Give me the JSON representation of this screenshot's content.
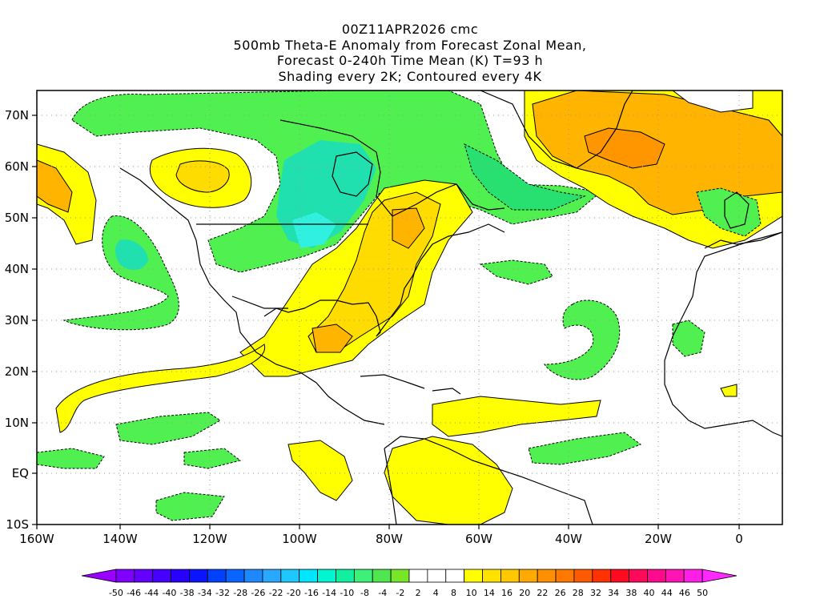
{
  "title": {
    "line1": "00Z11APR2026 cmc",
    "line2": "500mb Theta-E Anomaly from Forecast Zonal Mean,",
    "line3": "Forecast 0-240h Time Mean (K) T=93 h",
    "line4": "Shading every 2K; Contoured every 4K"
  },
  "axes": {
    "lat_labels": [
      "70N",
      "60N",
      "50N",
      "40N",
      "30N",
      "20N",
      "10N",
      "EQ",
      "10S"
    ],
    "lon_labels": [
      "160W",
      "140W",
      "120W",
      "100W",
      "80W",
      "60W",
      "40W",
      "20W",
      "0"
    ]
  },
  "colorbar": {
    "labels": [
      "-50",
      "-46",
      "-44",
      "-40",
      "-38",
      "-34",
      "-32",
      "-28",
      "-26",
      "-22",
      "-20",
      "-16",
      "-14",
      "-10",
      "-8",
      "-4",
      "-2",
      "2",
      "4",
      "8",
      "10",
      "14",
      "16",
      "20",
      "22",
      "26",
      "28",
      "32",
      "34",
      "38",
      "40",
      "44",
      "46",
      "50"
    ],
    "colors": [
      "#9a00ff",
      "#7f00ff",
      "#6400ff",
      "#4600ff",
      "#2800ff",
      "#0a14ff",
      "#0040ff",
      "#0a64ff",
      "#1e88ff",
      "#28a8ff",
      "#1ec8ff",
      "#00e6ff",
      "#00f5d0",
      "#10f0a0",
      "#3cf078",
      "#50e650",
      "#78e628",
      "#ffffff",
      "#ffffff",
      "#ffffff",
      "#ffff00",
      "#ffe100",
      "#ffc800",
      "#ffaa00",
      "#ff9100",
      "#ff7800",
      "#ff5a00",
      "#ff3200",
      "#ff0a1e",
      "#ff0a5a",
      "#ff0a8c",
      "#ff14b4",
      "#ff1ee6",
      "#ff28ff"
    ]
  },
  "colors": {
    "green_light": "#50f050",
    "green_mid": "#28e070",
    "teal": "#20e0b0",
    "cyan": "#30f0e0",
    "yellow": "#ffff00",
    "yellow_orange": "#ffdc00",
    "orange_light": "#ffb400",
    "orange": "#ff9600"
  }
}
